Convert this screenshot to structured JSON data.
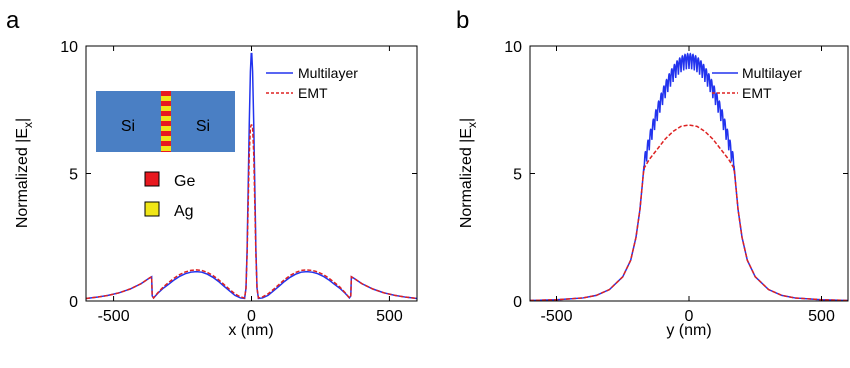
{
  "chart_data": [
    {
      "panel_label": "a",
      "type": "line",
      "xlabel": "x (nm)",
      "ylabel": "Normalized |E",
      "ylabel_sub": "x",
      "ylabel_close": "|",
      "xlim": [
        -600,
        600
      ],
      "ylim": [
        0,
        10
      ],
      "xticks": [
        "-500",
        "0",
        "500"
      ],
      "xtick_values": [
        -500,
        0,
        500
      ],
      "yticks": [
        "0",
        "5",
        "10"
      ],
      "ytick_values": [
        0,
        5,
        10
      ],
      "legend": {
        "position": "top-right",
        "entries": [
          "Multilayer",
          "EMT"
        ]
      },
      "series": [
        {
          "name": "Multilayer",
          "color": "#2233ee",
          "style": "solid",
          "x": [
            -600,
            -560,
            -520,
            -480,
            -440,
            -400,
            -370,
            -362,
            -360,
            -355,
            -340,
            -320,
            -300,
            -280,
            -260,
            -240,
            -220,
            -200,
            -180,
            -160,
            -140,
            -120,
            -100,
            -80,
            -60,
            -40,
            -25,
            -20,
            -16,
            -12,
            -8,
            -4,
            -1,
            0,
            1,
            4,
            8,
            12,
            16,
            20,
            25,
            40,
            60,
            80,
            100,
            120,
            140,
            160,
            180,
            200,
            220,
            240,
            260,
            280,
            300,
            320,
            340,
            355,
            360,
            362,
            370,
            400,
            440,
            480,
            520,
            560,
            600
          ],
          "y": [
            0.1,
            0.15,
            0.22,
            0.32,
            0.47,
            0.68,
            0.9,
            0.95,
            0.2,
            0.12,
            0.3,
            0.5,
            0.66,
            0.83,
            0.97,
            1.07,
            1.13,
            1.15,
            1.13,
            1.05,
            0.93,
            0.77,
            0.58,
            0.4,
            0.22,
            0.12,
            0.1,
            0.5,
            2.0,
            4.5,
            7.0,
            9.0,
            9.7,
            9.7,
            9.7,
            9.0,
            7.0,
            4.5,
            2.0,
            0.5,
            0.1,
            0.12,
            0.22,
            0.4,
            0.58,
            0.77,
            0.93,
            1.05,
            1.13,
            1.15,
            1.13,
            1.07,
            0.97,
            0.83,
            0.66,
            0.5,
            0.3,
            0.12,
            0.2,
            0.95,
            0.9,
            0.68,
            0.47,
            0.32,
            0.22,
            0.15,
            0.1
          ]
        },
        {
          "name": "EMT",
          "color": "#dd2222",
          "style": "dashed",
          "x": [
            -600,
            -560,
            -520,
            -480,
            -440,
            -400,
            -370,
            -362,
            -360,
            -355,
            -340,
            -320,
            -300,
            -280,
            -260,
            -240,
            -220,
            -200,
            -180,
            -160,
            -140,
            -120,
            -100,
            -80,
            -60,
            -40,
            -25,
            -20,
            -16,
            -12,
            -8,
            -4,
            -1,
            0,
            1,
            4,
            8,
            12,
            16,
            20,
            25,
            40,
            60,
            80,
            100,
            120,
            140,
            160,
            180,
            200,
            220,
            240,
            260,
            280,
            300,
            320,
            340,
            355,
            360,
            362,
            370,
            400,
            440,
            480,
            520,
            560,
            600
          ],
          "y": [
            0.1,
            0.15,
            0.22,
            0.32,
            0.47,
            0.68,
            0.9,
            0.95,
            0.2,
            0.12,
            0.32,
            0.55,
            0.73,
            0.9,
            1.04,
            1.14,
            1.2,
            1.22,
            1.2,
            1.12,
            1.0,
            0.84,
            0.65,
            0.46,
            0.28,
            0.16,
            0.12,
            0.5,
            1.8,
            3.8,
            5.8,
            6.8,
            6.9,
            6.9,
            6.9,
            6.8,
            5.8,
            3.8,
            1.8,
            0.5,
            0.12,
            0.16,
            0.28,
            0.46,
            0.65,
            0.84,
            1.0,
            1.12,
            1.2,
            1.22,
            1.2,
            1.14,
            1.04,
            0.9,
            0.73,
            0.55,
            0.32,
            0.12,
            0.2,
            0.95,
            0.9,
            0.68,
            0.47,
            0.32,
            0.22,
            0.15,
            0.1
          ]
        }
      ],
      "inset": {
        "left_label": "Si",
        "right_label": "Si",
        "materials": [
          {
            "label": "Ge",
            "color": "#e8191f"
          },
          {
            "label": "Ag",
            "color": "#f0e617"
          }
        ],
        "substrate_color": "#4a7fc4"
      }
    },
    {
      "panel_label": "b",
      "type": "line",
      "xlabel": "y (nm)",
      "ylabel": "Normalized |E",
      "ylabel_sub": "x",
      "ylabel_close": "|",
      "xlim": [
        -600,
        600
      ],
      "ylim": [
        0,
        10
      ],
      "xticks": [
        "-500",
        "0",
        "500"
      ],
      "xtick_values": [
        -500,
        0,
        500
      ],
      "yticks": [
        "0",
        "5",
        "10"
      ],
      "ytick_values": [
        0,
        5,
        10
      ],
      "legend": {
        "position": "top-right",
        "entries": [
          "Multilayer",
          "EMT"
        ]
      },
      "series": [
        {
          "name": "Multilayer",
          "color": "#2233ee",
          "style": "solid",
          "envelope": {
            "x_min": -170,
            "x_max": 170,
            "center_value": 9.4,
            "edge_value": 5.3,
            "ripple_amplitude": 0.3,
            "ripple_period": 10
          },
          "x": [
            -600,
            -500,
            -400,
            -350,
            -300,
            -250,
            -220,
            -200,
            -185,
            -175,
            -170
          ],
          "y": [
            0.02,
            0.05,
            0.12,
            0.22,
            0.45,
            0.95,
            1.6,
            2.5,
            3.6,
            4.7,
            5.3
          ]
        },
        {
          "name": "EMT",
          "color": "#dd2222",
          "style": "dashed",
          "x": [
            -600,
            -500,
            -400,
            -350,
            -300,
            -250,
            -220,
            -200,
            -185,
            -175,
            -170,
            -150,
            -120,
            -90,
            -60,
            -30,
            0,
            30,
            60,
            90,
            120,
            150,
            170,
            175,
            185,
            200,
            220,
            250,
            300,
            350,
            400,
            500,
            600
          ],
          "y": [
            0.02,
            0.05,
            0.12,
            0.22,
            0.45,
            0.95,
            1.6,
            2.5,
            3.6,
            4.7,
            5.2,
            5.55,
            5.95,
            6.35,
            6.65,
            6.85,
            6.9,
            6.85,
            6.65,
            6.35,
            5.95,
            5.55,
            5.2,
            4.7,
            3.6,
            2.5,
            1.6,
            0.95,
            0.45,
            0.22,
            0.12,
            0.05,
            0.02
          ]
        }
      ]
    }
  ]
}
